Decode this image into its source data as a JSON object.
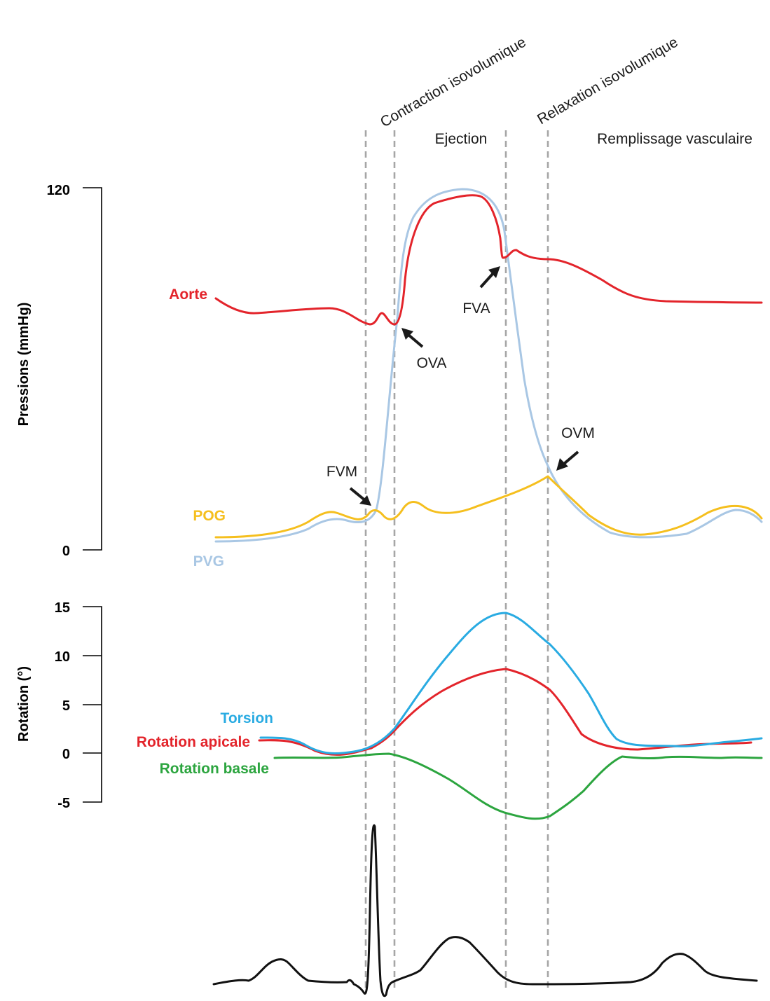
{
  "colors": {
    "aorte": "#e3242b",
    "pvg": "#a9c7e4",
    "pog": "#f5bf1e",
    "torsion": "#29abe2",
    "rotation_apicale": "#e3242b",
    "rotation_basale": "#2ca53f",
    "ecg": "#111111",
    "phase_lines": "#a6a6a6"
  },
  "phases": {
    "contraction": "Contraction isovolumique",
    "ejection": "Ejection",
    "relaxation": "Relaxation isovolumique",
    "remplissage": "Remplissage vasculaire"
  },
  "annotations": {
    "fvm": "FVM",
    "ova": "OVA",
    "fva": "FVA",
    "ovm": "OVM"
  },
  "chart_data": [
    {
      "type": "line",
      "title": "",
      "xlabel": "",
      "ylabel": "Pressions (mmHg)",
      "ylim": [
        0,
        120
      ],
      "yticks": [
        "120",
        "0"
      ],
      "x": [
        0,
        0.07,
        0.14,
        0.21,
        0.28,
        0.35,
        0.42,
        0.49,
        0.56,
        0.63,
        0.7,
        0.77,
        0.84,
        0.91,
        1
      ],
      "series": [
        {
          "name": "Aorte",
          "values": [
            83,
            80,
            80,
            81,
            80,
            83,
            115,
            114,
            95,
            94,
            89,
            82,
            82,
            82,
            82
          ]
        },
        {
          "name": "PVG",
          "values": [
            2.5,
            3,
            5,
            9,
            15,
            72,
            120,
            113,
            48,
            18,
            6,
            5,
            8,
            16,
            9
          ]
        },
        {
          "name": "POG",
          "values": [
            4,
            4.5,
            7,
            13,
            14,
            16,
            15,
            18,
            22,
            25,
            14,
            6,
            8,
            15,
            11
          ]
        }
      ]
    },
    {
      "type": "line",
      "title": "",
      "xlabel": "",
      "ylabel": "Rotation (°)",
      "ylim": [
        -5,
        15
      ],
      "yticks": [
        "15",
        "10",
        "5",
        "0",
        "-5"
      ],
      "x": [
        0,
        0.07,
        0.14,
        0.21,
        0.28,
        0.35,
        0.42,
        0.49,
        0.56,
        0.63,
        0.7,
        0.77,
        0.84,
        0.91,
        1
      ],
      "series": [
        {
          "name": "Torsion",
          "values": [
            1.6,
            0.2,
            0.6,
            3.5,
            8.5,
            12.5,
            14.3,
            12.5,
            8,
            1.5,
            0.8,
            0.8,
            1,
            1.2,
            1.5
          ]
        },
        {
          "name": "Rotation apicale",
          "values": [
            1.3,
            -0.3,
            0.4,
            2.8,
            5.5,
            7.5,
            8.6,
            7.5,
            4,
            0.6,
            0.4,
            0.8,
            1,
            1,
            1
          ]
        },
        {
          "name": "Rotation basale",
          "values": [
            -0.5,
            -0.4,
            -0.2,
            -0.1,
            -1,
            -3,
            -5.5,
            -6.7,
            -4,
            -0.5,
            -0.5,
            -0.4,
            -0.5,
            -0.4,
            -0.6
          ]
        }
      ]
    }
  ]
}
